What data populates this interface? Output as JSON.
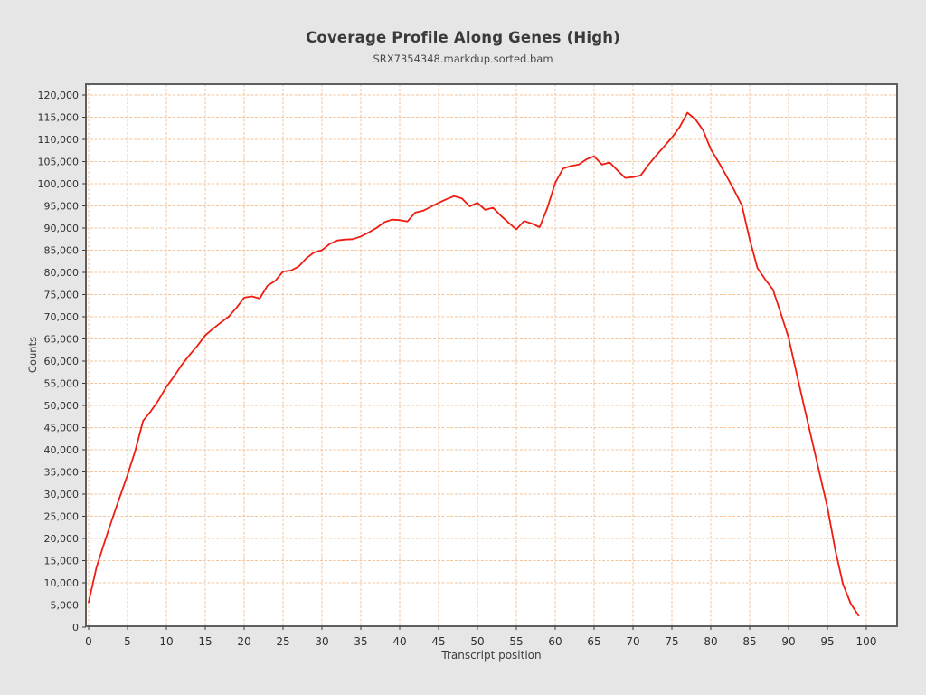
{
  "header": {
    "title": "Coverage Profile Along Genes (High)",
    "subtitle": "SRX7354348.markdup.sorted.bam"
  },
  "chart_data": {
    "type": "line",
    "title": "Coverage Profile Along Genes (High)",
    "subtitle": "SRX7354348.markdup.sorted.bam",
    "xlabel": "Transcript position",
    "ylabel": "Counts",
    "xlim": [
      -0.4,
      104
    ],
    "ylim": [
      0,
      122500
    ],
    "grid": true,
    "legend_position": "none",
    "xticks": [
      0,
      5,
      10,
      15,
      20,
      25,
      30,
      35,
      40,
      45,
      50,
      55,
      60,
      65,
      70,
      75,
      80,
      85,
      90,
      95,
      100
    ],
    "xtick_labels": [
      "0",
      "5",
      "10",
      "15",
      "20",
      "25",
      "30",
      "35",
      "40",
      "45",
      "50",
      "55",
      "60",
      "65",
      "70",
      "75",
      "80",
      "85",
      "90",
      "95",
      "100"
    ],
    "yticks": [
      0,
      5000,
      10000,
      15000,
      20000,
      25000,
      30000,
      35000,
      40000,
      45000,
      50000,
      55000,
      60000,
      65000,
      70000,
      75000,
      80000,
      85000,
      90000,
      95000,
      100000,
      105000,
      110000,
      115000,
      120000
    ],
    "ytick_labels": [
      "0",
      "5,000",
      "10,000",
      "15,000",
      "20,000",
      "25,000",
      "30,000",
      "35,000",
      "40,000",
      "45,000",
      "50,000",
      "55,000",
      "60,000",
      "65,000",
      "70,000",
      "75,000",
      "80,000",
      "85,000",
      "90,000",
      "95,000",
      "100,000",
      "105,000",
      "110,000",
      "115,000",
      "120,000"
    ],
    "x": [
      0,
      1,
      2,
      3,
      4,
      5,
      6,
      7,
      8,
      9,
      10,
      11,
      12,
      13,
      14,
      15,
      16,
      17,
      18,
      19,
      20,
      21,
      22,
      23,
      24,
      25,
      26,
      27,
      28,
      29,
      30,
      31,
      32,
      33,
      34,
      35,
      36,
      37,
      38,
      39,
      40,
      41,
      42,
      43,
      44,
      45,
      46,
      47,
      48,
      49,
      50,
      51,
      52,
      53,
      54,
      55,
      56,
      57,
      58,
      59,
      60,
      61,
      62,
      63,
      64,
      65,
      66,
      67,
      68,
      69,
      70,
      71,
      72,
      73,
      74,
      75,
      76,
      77,
      78,
      79,
      80,
      81,
      82,
      83,
      84,
      85,
      86,
      87,
      88,
      89,
      90,
      91,
      92,
      93,
      94,
      95,
      96,
      97,
      98,
      99
    ],
    "series": [
      {
        "name": "SRX7354348.markdup.sorted.bam",
        "color": "#ee1c11",
        "values": [
          5600,
          13400,
          18900,
          24200,
          29300,
          34300,
          39800,
          46500,
          48700,
          51200,
          54200,
          56600,
          59200,
          61400,
          63500,
          65800,
          67300,
          68700,
          70000,
          72000,
          74300,
          74600,
          74100,
          77000,
          78100,
          80200,
          80400,
          81300,
          83200,
          84500,
          85000,
          86400,
          87200,
          87400,
          87500,
          88100,
          89000,
          90000,
          91300,
          91900,
          91800,
          91500,
          93500,
          93900,
          94800,
          95700,
          96500,
          97200,
          96700,
          94900,
          95700,
          94100,
          94600,
          92800,
          91200,
          89700,
          91600,
          91000,
          90200,
          94600,
          100200,
          103400,
          104000,
          104300,
          105500,
          106200,
          104300,
          104800,
          103000,
          101300,
          101500,
          101900,
          104300,
          106400,
          108400,
          110400,
          112800,
          116000,
          114600,
          112100,
          107800,
          104900,
          101800,
          98600,
          95100,
          87500,
          81000,
          78400,
          76100,
          70800,
          65300,
          57500,
          49800,
          42200,
          34600,
          27000,
          17500,
          9700,
          5300,
          2600
        ]
      }
    ],
    "colors": {
      "page_background": "#e6e6e6",
      "plot_background": "#ffffff",
      "grid": "#f2c49c",
      "axis_border": "#5e5e5e",
      "tick": "#3c3c3c",
      "tick_label": "#2f2f2f"
    }
  }
}
